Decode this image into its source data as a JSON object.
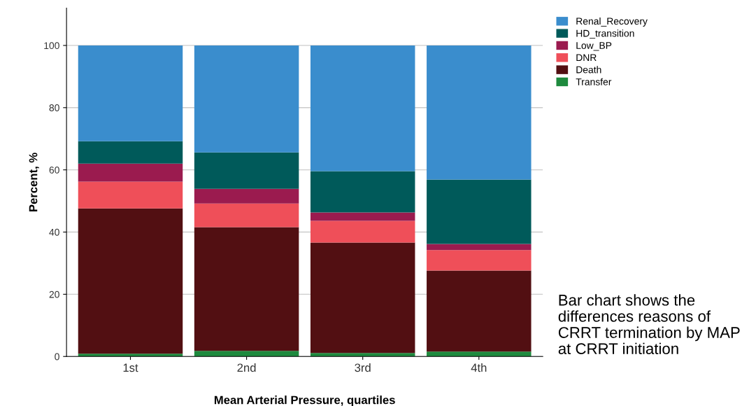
{
  "chart_data": {
    "type": "bar",
    "stacked": true,
    "categories": [
      "1st",
      "2nd",
      "3rd",
      "4th"
    ],
    "xlabel": "Mean Arterial Pressure, quartiles",
    "ylabel": "Percent, %",
    "ylim": [
      0,
      112
    ],
    "yticks": [
      0,
      20,
      40,
      60,
      80,
      100
    ],
    "grid": "y",
    "legend": "top right",
    "series": [
      {
        "name": "Transfer",
        "color": "#1e8a3e",
        "values": [
          0.9,
          1.8,
          1.1,
          1.6
        ]
      },
      {
        "name": "Death",
        "color": "#520f12",
        "values": [
          46.7,
          39.8,
          35.5,
          26.0
        ]
      },
      {
        "name": "DNR",
        "color": "#ef4f59",
        "values": [
          8.6,
          7.6,
          7.0,
          6.6
        ]
      },
      {
        "name": "Low_BP",
        "color": "#9b1b4f",
        "values": [
          5.8,
          4.7,
          2.7,
          2.0
        ]
      },
      {
        "name": "HD_transition",
        "color": "#005a5a",
        "values": [
          7.2,
          11.7,
          13.3,
          20.7
        ]
      },
      {
        "name": "Renal_Recovery",
        "color": "#3a8dcd",
        "values": [
          30.8,
          34.4,
          40.4,
          43.1
        ]
      }
    ],
    "annotations": [
      "Bar chart shows the differences reasons of CRRT termination by MAP at CRRT initiation"
    ]
  }
}
